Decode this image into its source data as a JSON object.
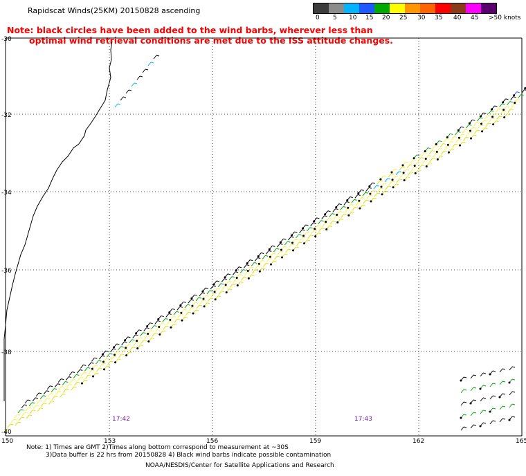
{
  "title": "Rapidscat Winds(25KM) 20150828 ascending",
  "note_line1": "Note: black circles have been added to the wind barbs, wherever less than",
  "note_line2": "optimal wind retrieval conditions are met due to the ISS attitude changes.",
  "color_scale": {
    "labels": [
      "0",
      "5",
      "10",
      "15",
      "20",
      "25",
      "30",
      "35",
      "40",
      "45",
      ">50 knots"
    ],
    "colors": [
      "#3c3c3c",
      "#8c8c8c",
      "#00b4ff",
      "#1e5aff",
      "#00aa00",
      "#ffff00",
      "#ff9600",
      "#ff6400",
      "#ff0000",
      "#8b3a1a",
      "#ff00ff",
      "#5a006e"
    ]
  },
  "axes": {
    "lon_labels": [
      "150",
      "153",
      "156",
      "159",
      "162",
      "165"
    ],
    "lat_labels": [
      "-30",
      "-32",
      "-34",
      "-36",
      "-38",
      "-40"
    ]
  },
  "time_labels": [
    "17:42",
    "17:43"
  ],
  "footer": {
    "line1": "Note: 1) Times are GMT 2)Times along bottom correspond to measurement at ~30S",
    "line2": "3)Data buffer is 22 hrs from 20150828 4) Black wind barbs indicate possible contamination",
    "line3": "NOAA/NESDIS/Center for Satellite Applications and Research"
  }
}
